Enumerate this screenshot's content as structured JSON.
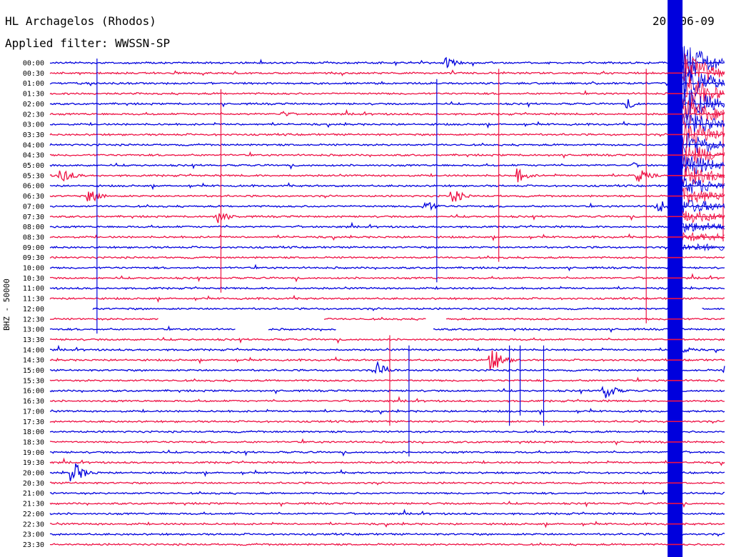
{
  "header": {
    "station": "HL Archagelos (Rhodos)",
    "filter": "Applied filter: WWSSN-SP",
    "date": "20 -06-09"
  },
  "chart_data": {
    "type": "line",
    "ylabel": "BHZ - 50000",
    "row_labels": [
      "00:00",
      "00:30",
      "01:00",
      "01:30",
      "02:00",
      "02:30",
      "03:00",
      "03:30",
      "04:00",
      "04:30",
      "05:00",
      "05:30",
      "06:00",
      "06:30",
      "07:00",
      "07:30",
      "08:00",
      "08:30",
      "09:00",
      "09:30",
      "10:00",
      "10:30",
      "11:00",
      "11:30",
      "12:00",
      "12:30",
      "13:00",
      "13:30",
      "14:00",
      "14:30",
      "15:00",
      "15:30",
      "16:00",
      "16:30",
      "17:00",
      "17:30",
      "18:00",
      "18:30",
      "19:00",
      "19:30",
      "20:00",
      "20:30",
      "21:00",
      "21:30",
      "22:00",
      "22:30",
      "23:00",
      "23:30"
    ],
    "colors": {
      "even": "#0000dd",
      "odd": "#ee1144"
    },
    "minutes_per_row": 30,
    "events": [
      {
        "row": 0,
        "minute": 18.5,
        "amp": 9
      },
      {
        "row": 4,
        "minute": 27,
        "amp": 8
      },
      {
        "row": 5,
        "minute": 10.8,
        "amp": 5
      },
      {
        "row": 10,
        "minute": 27.3,
        "amp": 4
      },
      {
        "row": 11,
        "minute": 0.5,
        "amp": 14
      },
      {
        "row": 11,
        "minute": 21.8,
        "amp": 12
      },
      {
        "row": 11,
        "minute": 27.5,
        "amp": 12
      },
      {
        "row": 13,
        "minute": 1.8,
        "amp": 12
      },
      {
        "row": 13,
        "minute": 18.8,
        "amp": 12
      },
      {
        "row": 14,
        "minute": 17.5,
        "amp": 10
      },
      {
        "row": 14,
        "minute": 28.4,
        "amp": 12
      },
      {
        "row": 15,
        "minute": 7.8,
        "amp": 12
      },
      {
        "row": 28,
        "minute": 29.2,
        "amp": 12
      },
      {
        "row": 29,
        "minute": 20.6,
        "amp": 22
      },
      {
        "row": 30,
        "minute": 15.3,
        "amp": 12
      },
      {
        "row": 30,
        "minute": 31.6,
        "amp": 10
      },
      {
        "row": 32,
        "minute": 25.9,
        "amp": 14
      },
      {
        "row": 40,
        "minute": 1.0,
        "amp": 20
      }
    ],
    "spikes": [
      {
        "minute": 2.2,
        "row_from": 0,
        "row_to": 26
      },
      {
        "minute": 8.0,
        "row_from": 3,
        "row_to": 22
      },
      {
        "minute": 18.1,
        "row_from": 2,
        "row_to": 21
      },
      {
        "minute": 21.0,
        "row_from": 1,
        "row_to": 19
      },
      {
        "minute": 27.9,
        "row_from": 1,
        "row_to": 25
      },
      {
        "minute": 15.9,
        "row_from": 27,
        "row_to": 35
      },
      {
        "minute": 16.8,
        "row_from": 28,
        "row_to": 38
      },
      {
        "minute": 21.5,
        "row_from": 28,
        "row_to": 35
      },
      {
        "minute": 22.0,
        "row_from": 28,
        "row_to": 34
      },
      {
        "minute": 23.1,
        "row_from": 28,
        "row_to": 35
      },
      {
        "minute": 31.5,
        "row_from": 5,
        "row_to": 17
      }
    ],
    "gaps": [
      {
        "row": 24,
        "minute_from": 0,
        "minute_to": 2.0
      },
      {
        "row": 24,
        "minute_from": 29.5,
        "minute_to": 30.5
      },
      {
        "row": 25,
        "minute_from": 5.1,
        "minute_to": 12.8
      },
      {
        "row": 25,
        "minute_from": 17.6,
        "minute_to": 18.5
      },
      {
        "row": 26,
        "minute_from": 8.7,
        "minute_to": 10.2
      },
      {
        "row": 26,
        "minute_from": 13.4,
        "minute_to": 17.9
      }
    ],
    "saturated_band": {
      "minute_from": 28.9,
      "minute_to": 29.6,
      "row_from": 0,
      "row_to": 47
    },
    "coda_decay": {
      "minute_from": 29.6,
      "minute_to": 31.6,
      "row_from": 0,
      "row_to": 18
    }
  }
}
